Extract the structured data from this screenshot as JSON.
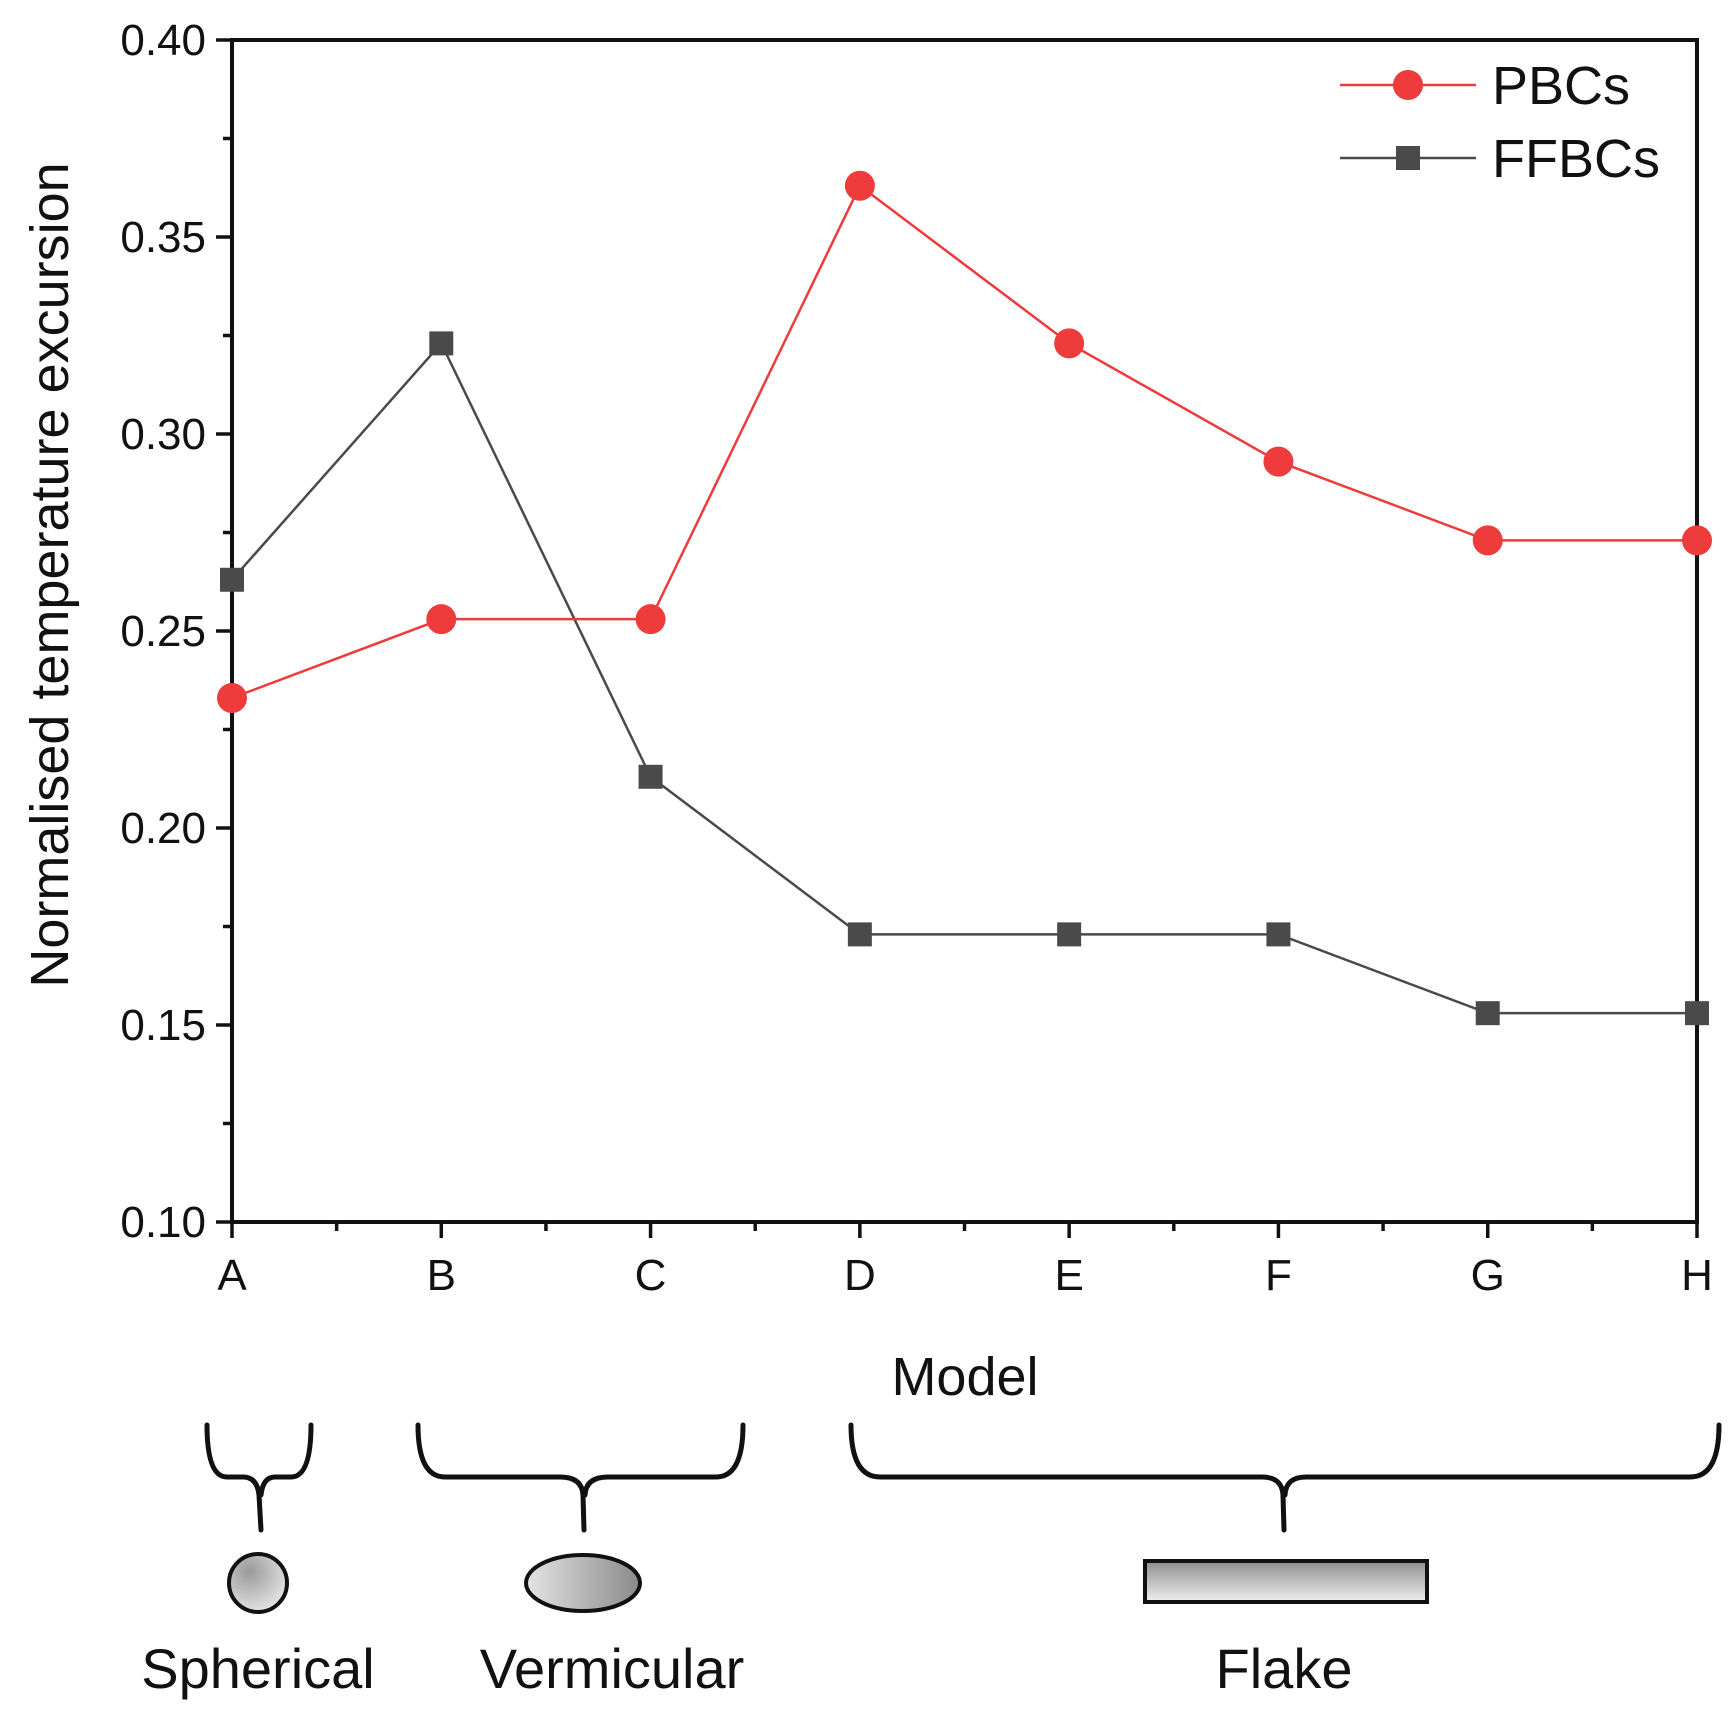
{
  "chart_data": {
    "type": "line",
    "title": "",
    "xlabel": "Model",
    "ylabel": "Normalised temperature excursion",
    "categories": [
      "A",
      "B",
      "C",
      "D",
      "E",
      "F",
      "G",
      "H"
    ],
    "ylim": [
      0.1,
      0.4
    ],
    "yticks": [
      "0.10",
      "0.15",
      "0.20",
      "0.25",
      "0.30",
      "0.35",
      "0.40"
    ],
    "legend_position": "top-right",
    "series": [
      {
        "name": "PBCs",
        "color": "#ee3b3b",
        "marker": "circle",
        "values": [
          0.233,
          0.253,
          0.253,
          0.363,
          0.323,
          0.293,
          0.273,
          0.273
        ]
      },
      {
        "name": "FFBCs",
        "color": "#4a4a4a",
        "marker": "square",
        "values": [
          0.263,
          0.323,
          0.213,
          0.173,
          0.173,
          0.173,
          0.153,
          0.153
        ]
      }
    ],
    "shape_groups": [
      {
        "label": "Spherical",
        "models": [
          "A"
        ],
        "icon": "sphere-icon"
      },
      {
        "label": "Vermicular",
        "models": [
          "B",
          "C"
        ],
        "icon": "ellipse-icon"
      },
      {
        "label": "Flake",
        "models": [
          "D",
          "E",
          "F",
          "G",
          "H"
        ],
        "icon": "flake-bar-icon"
      }
    ]
  }
}
